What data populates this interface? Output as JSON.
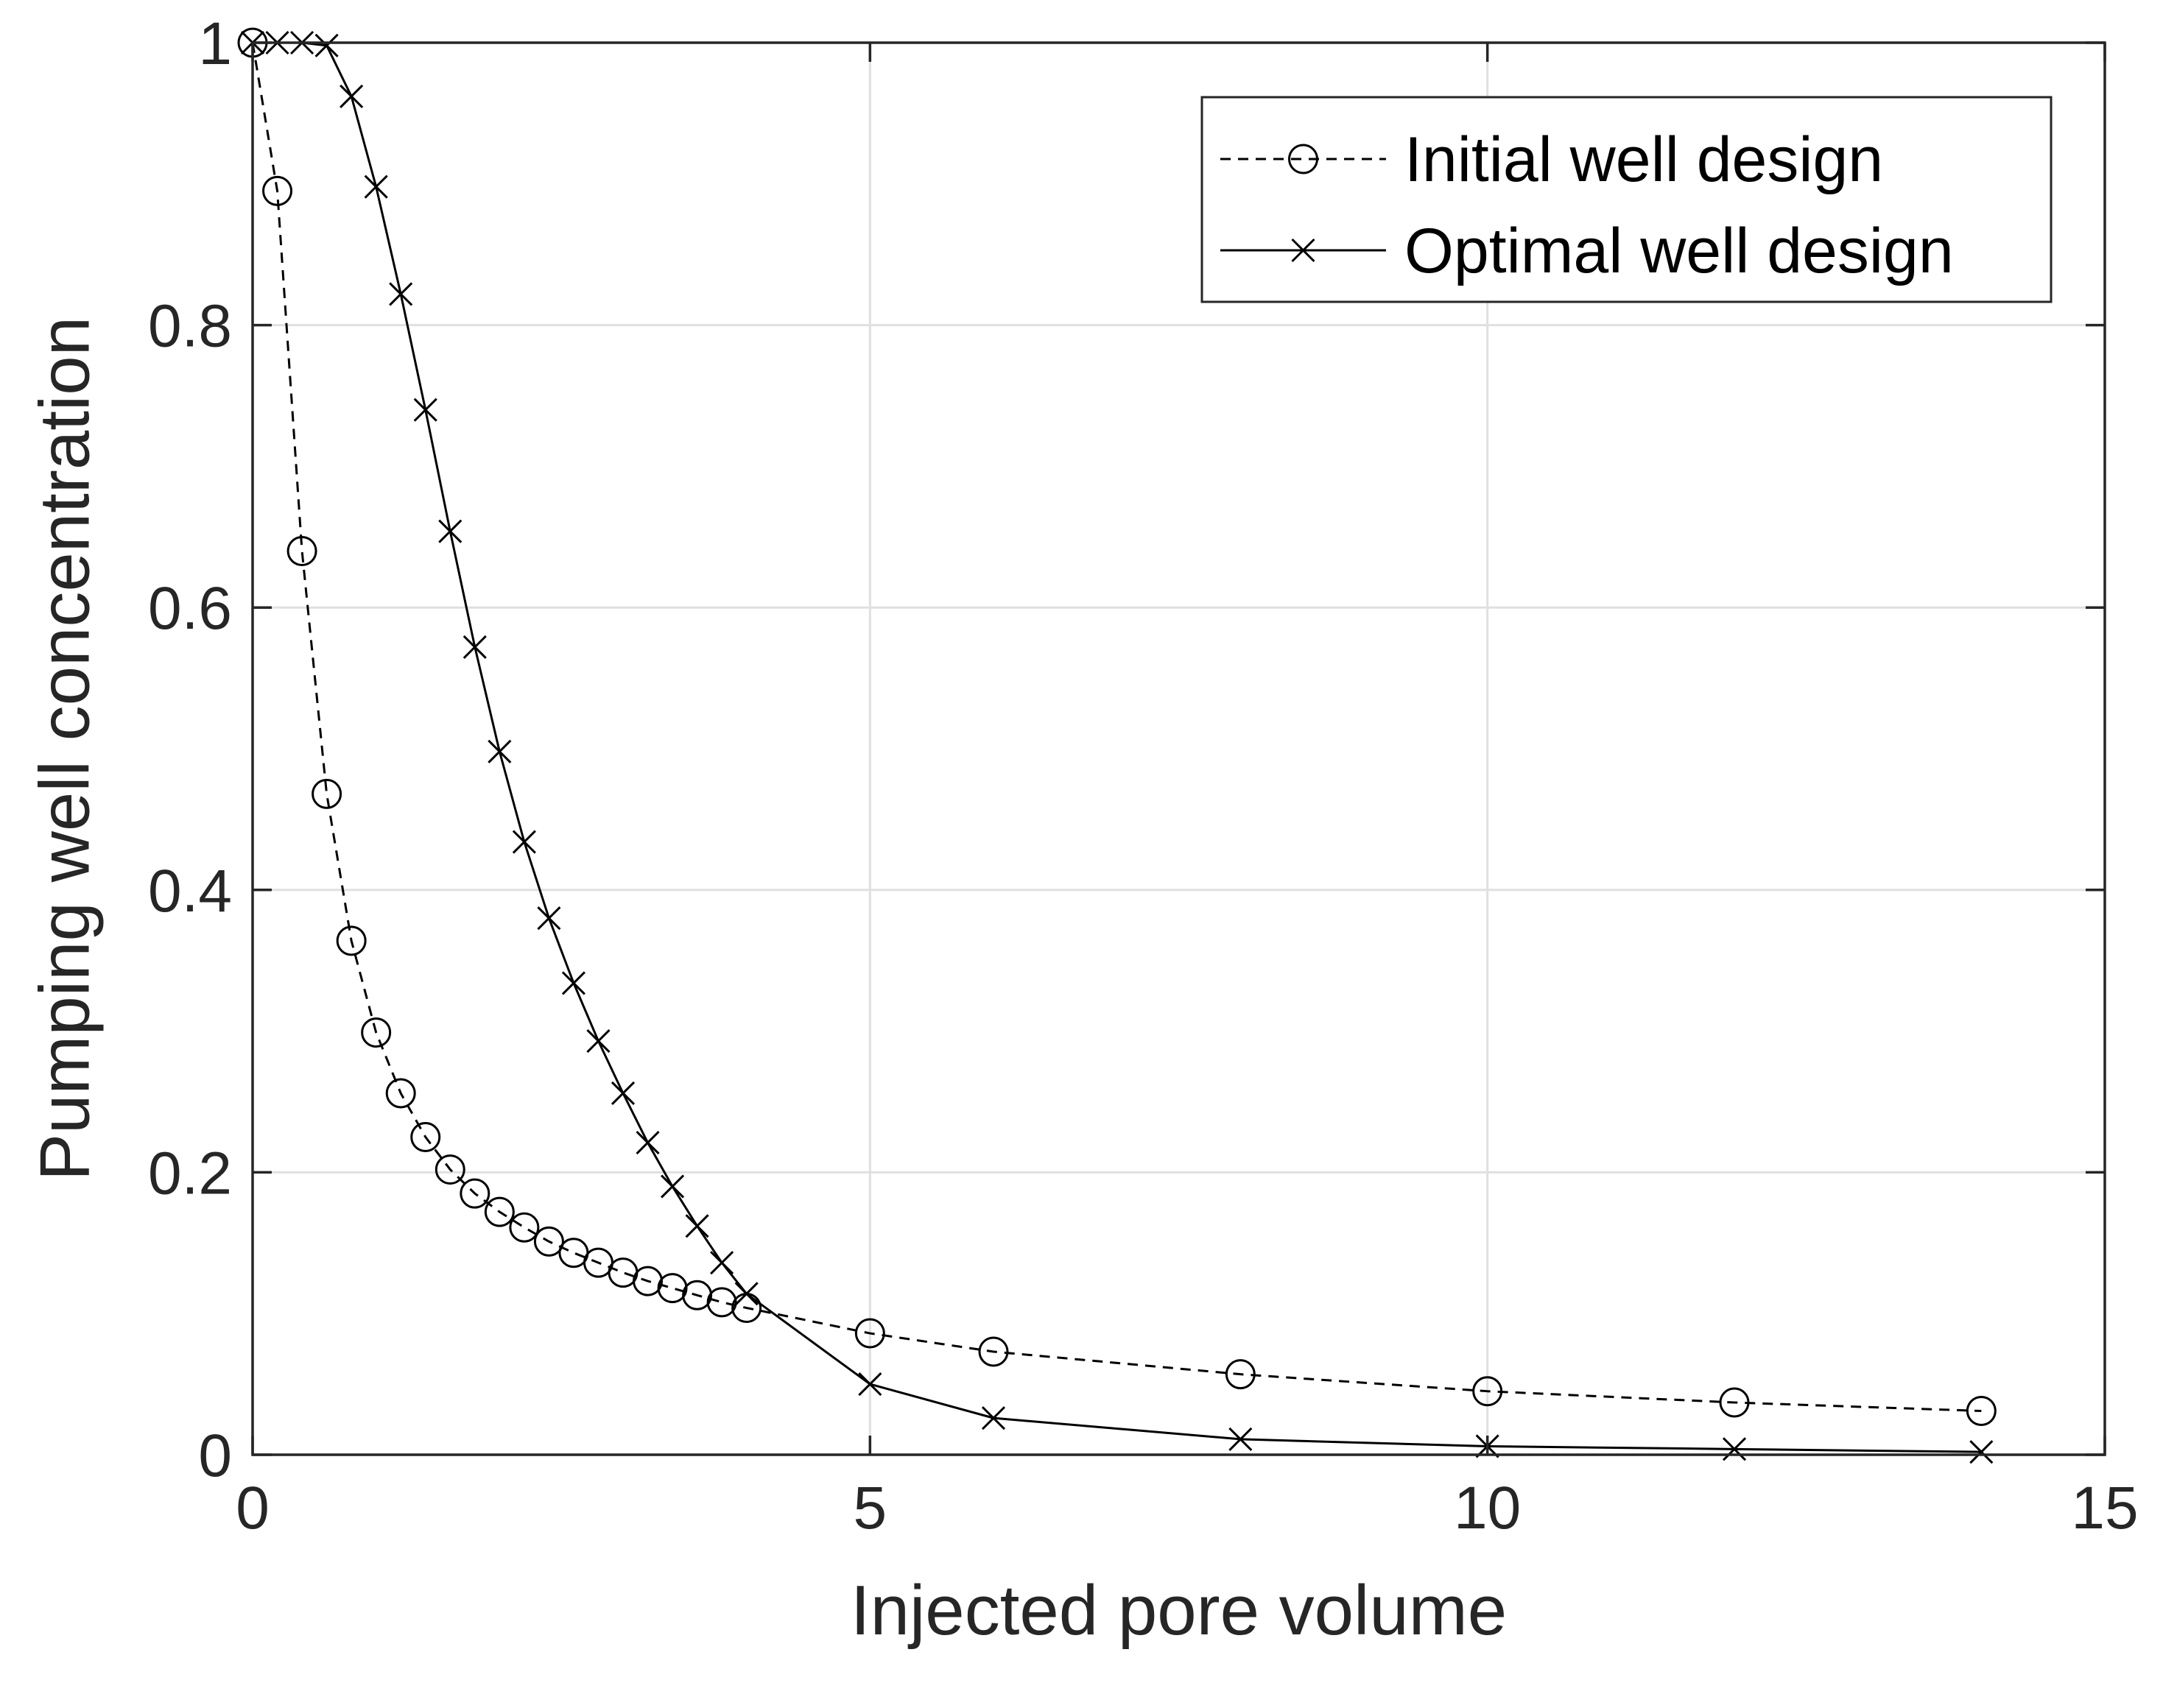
{
  "chart_data": {
    "type": "line",
    "title": "",
    "xlabel": "Injected pore volume",
    "ylabel": "Pumping well concentration",
    "xlim": [
      0,
      15
    ],
    "ylim": [
      0,
      1
    ],
    "xticks": [
      0,
      5,
      10,
      15
    ],
    "yticks": [
      0,
      0.2,
      0.4,
      0.6,
      0.8,
      1
    ],
    "xtick_labels": [
      "0",
      "5",
      "10",
      "15"
    ],
    "ytick_labels": [
      "0",
      "0.2",
      "0.4",
      "0.6",
      "0.8",
      "1"
    ],
    "grid": true,
    "box": true,
    "legend_position": "top-right",
    "colors": {
      "axis": "#262626",
      "grid": "#e0e0e0",
      "series": "#000000"
    },
    "series": [
      {
        "name": "Initial well design",
        "line_style": "dashed",
        "marker": "circle",
        "x": [
          0,
          0.2,
          0.4,
          0.6,
          0.8,
          1.0,
          1.2,
          1.4,
          1.6,
          1.8,
          2.0,
          2.2,
          2.4,
          2.6,
          2.8,
          3.0,
          3.2,
          3.4,
          3.6,
          3.8,
          4.0,
          5,
          6,
          8,
          10,
          12,
          14
        ],
        "y": [
          1.0,
          0.895,
          0.64,
          0.468,
          0.364,
          0.299,
          0.256,
          0.225,
          0.202,
          0.185,
          0.172,
          0.161,
          0.151,
          0.143,
          0.136,
          0.129,
          0.123,
          0.118,
          0.113,
          0.108,
          0.104,
          0.086,
          0.073,
          0.057,
          0.045,
          0.037,
          0.031
        ]
      },
      {
        "name": "Optimal well design",
        "line_style": "solid",
        "marker": "x",
        "x": [
          0,
          0.2,
          0.4,
          0.6,
          0.8,
          1.0,
          1.2,
          1.4,
          1.6,
          1.8,
          2.0,
          2.2,
          2.4,
          2.6,
          2.8,
          3.0,
          3.2,
          3.4,
          3.6,
          3.8,
          4.0,
          5,
          6,
          8,
          10,
          12,
          14
        ],
        "y": [
          1.0,
          1.0,
          1.0,
          0.998,
          0.962,
          0.898,
          0.822,
          0.74,
          0.654,
          0.572,
          0.498,
          0.434,
          0.38,
          0.334,
          0.293,
          0.256,
          0.221,
          0.19,
          0.162,
          0.136,
          0.114,
          0.05,
          0.026,
          0.011,
          0.006,
          0.004,
          0.002
        ]
      }
    ]
  }
}
